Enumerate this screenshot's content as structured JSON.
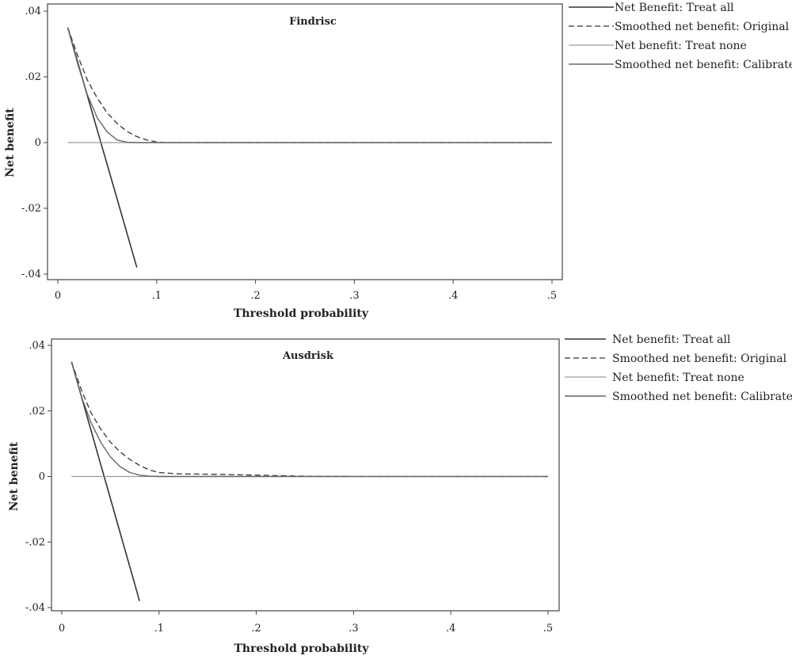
{
  "chart_data": [
    {
      "type": "line",
      "title": "Findrisc",
      "xlabel": "Threshold probability",
      "ylabel": "Net benefit",
      "xlim": [
        0,
        0.5
      ],
      "ylim": [
        -0.04,
        0.04
      ],
      "xticks": [
        0,
        0.1,
        0.2,
        0.3,
        0.4,
        0.5
      ],
      "xtick_labels": [
        "0",
        ".1",
        ".2",
        ".3",
        ".4",
        ".5"
      ],
      "yticks": [
        0.04,
        0.02,
        0,
        -0.02,
        -0.04
      ],
      "ytick_labels": [
        ".04",
        ".02",
        "0",
        "-.02",
        "-.04"
      ],
      "grid": false,
      "legend_position": "right",
      "series": [
        {
          "name": "Net Benefit: Treat all",
          "style": "solid",
          "color": "#333333",
          "width": 1.6,
          "x": [
            0.01,
            0.08
          ],
          "y": [
            0.035,
            -0.038
          ]
        },
        {
          "name": "Smoothed net benefit: Original",
          "style": "dashed",
          "color": "#333333",
          "width": 1.3,
          "x": [
            0.01,
            0.02,
            0.03,
            0.04,
            0.05,
            0.06,
            0.07,
            0.08,
            0.09,
            0.1,
            0.11,
            0.15,
            0.2,
            0.3,
            0.4,
            0.5
          ],
          "y": [
            0.035,
            0.0265,
            0.019,
            0.0135,
            0.009,
            0.0058,
            0.0034,
            0.0018,
            0.0008,
            0.0002,
            0.0,
            0.0,
            0.0,
            0.0,
            0.0,
            0.0
          ]
        },
        {
          "name": "Net benefit: Treat none",
          "style": "solid",
          "color": "#9a9a9a",
          "width": 1.3,
          "x": [
            0.01,
            0.5
          ],
          "y": [
            0,
            0
          ]
        },
        {
          "name": "Smoothed net benefit: Calibrated",
          "style": "solid",
          "color": "#666666",
          "width": 1.4,
          "x": [
            0.01,
            0.02,
            0.03,
            0.04,
            0.05,
            0.06,
            0.07,
            0.08,
            0.09,
            0.1,
            0.2,
            0.3,
            0.4,
            0.5
          ],
          "y": [
            0.035,
            0.024,
            0.0145,
            0.0075,
            0.0032,
            0.0008,
            0.0001,
            0.0,
            0.0,
            0.0,
            0.0,
            0.0,
            0.0,
            0.0
          ]
        }
      ]
    },
    {
      "type": "line",
      "title": "Ausdrisk",
      "xlabel": "Threshold probability",
      "ylabel": "Net benefit",
      "xlim": [
        0,
        0.5
      ],
      "ylim": [
        -0.04,
        0.04
      ],
      "xticks": [
        0,
        0.1,
        0.2,
        0.3,
        0.4,
        0.5
      ],
      "xtick_labels": [
        "0",
        ".1",
        ".2",
        ".3",
        ".4",
        ".5"
      ],
      "yticks": [
        0.04,
        0.02,
        0,
        -0.02,
        -0.04
      ],
      "ytick_labels": [
        ".04",
        ".02",
        "0",
        "-.02",
        "-.04"
      ],
      "grid": false,
      "legend_position": "right",
      "series": [
        {
          "name": "Net benefit: Treat all",
          "style": "solid",
          "color": "#333333",
          "width": 1.6,
          "x": [
            0.01,
            0.08
          ],
          "y": [
            0.035,
            -0.038
          ]
        },
        {
          "name": "Smoothed net benefit: Original",
          "style": "dashed",
          "color": "#333333",
          "width": 1.3,
          "x": [
            0.01,
            0.02,
            0.03,
            0.04,
            0.05,
            0.06,
            0.07,
            0.08,
            0.09,
            0.1,
            0.12,
            0.15,
            0.2,
            0.25,
            0.3,
            0.4,
            0.5
          ],
          "y": [
            0.035,
            0.0265,
            0.0195,
            0.0145,
            0.0105,
            0.0075,
            0.0052,
            0.0034,
            0.002,
            0.0012,
            0.0008,
            0.0007,
            0.0004,
            0.0001,
            0.0,
            0.0,
            0.0
          ]
        },
        {
          "name": "Net benefit: Treat none",
          "style": "solid",
          "color": "#9a9a9a",
          "width": 1.3,
          "x": [
            0.01,
            0.5
          ],
          "y": [
            0,
            0
          ]
        },
        {
          "name": "Smoothed net benefit: Calibrated",
          "style": "solid",
          "color": "#666666",
          "width": 1.4,
          "x": [
            0.01,
            0.02,
            0.03,
            0.04,
            0.05,
            0.06,
            0.07,
            0.08,
            0.09,
            0.1,
            0.15,
            0.2,
            0.3,
            0.4,
            0.5
          ],
          "y": [
            0.035,
            0.0245,
            0.0165,
            0.0105,
            0.006,
            0.003,
            0.0012,
            0.0004,
            0.0001,
            0.0,
            0.0,
            0.0,
            0.0,
            0.0,
            0.0
          ]
        }
      ]
    }
  ]
}
